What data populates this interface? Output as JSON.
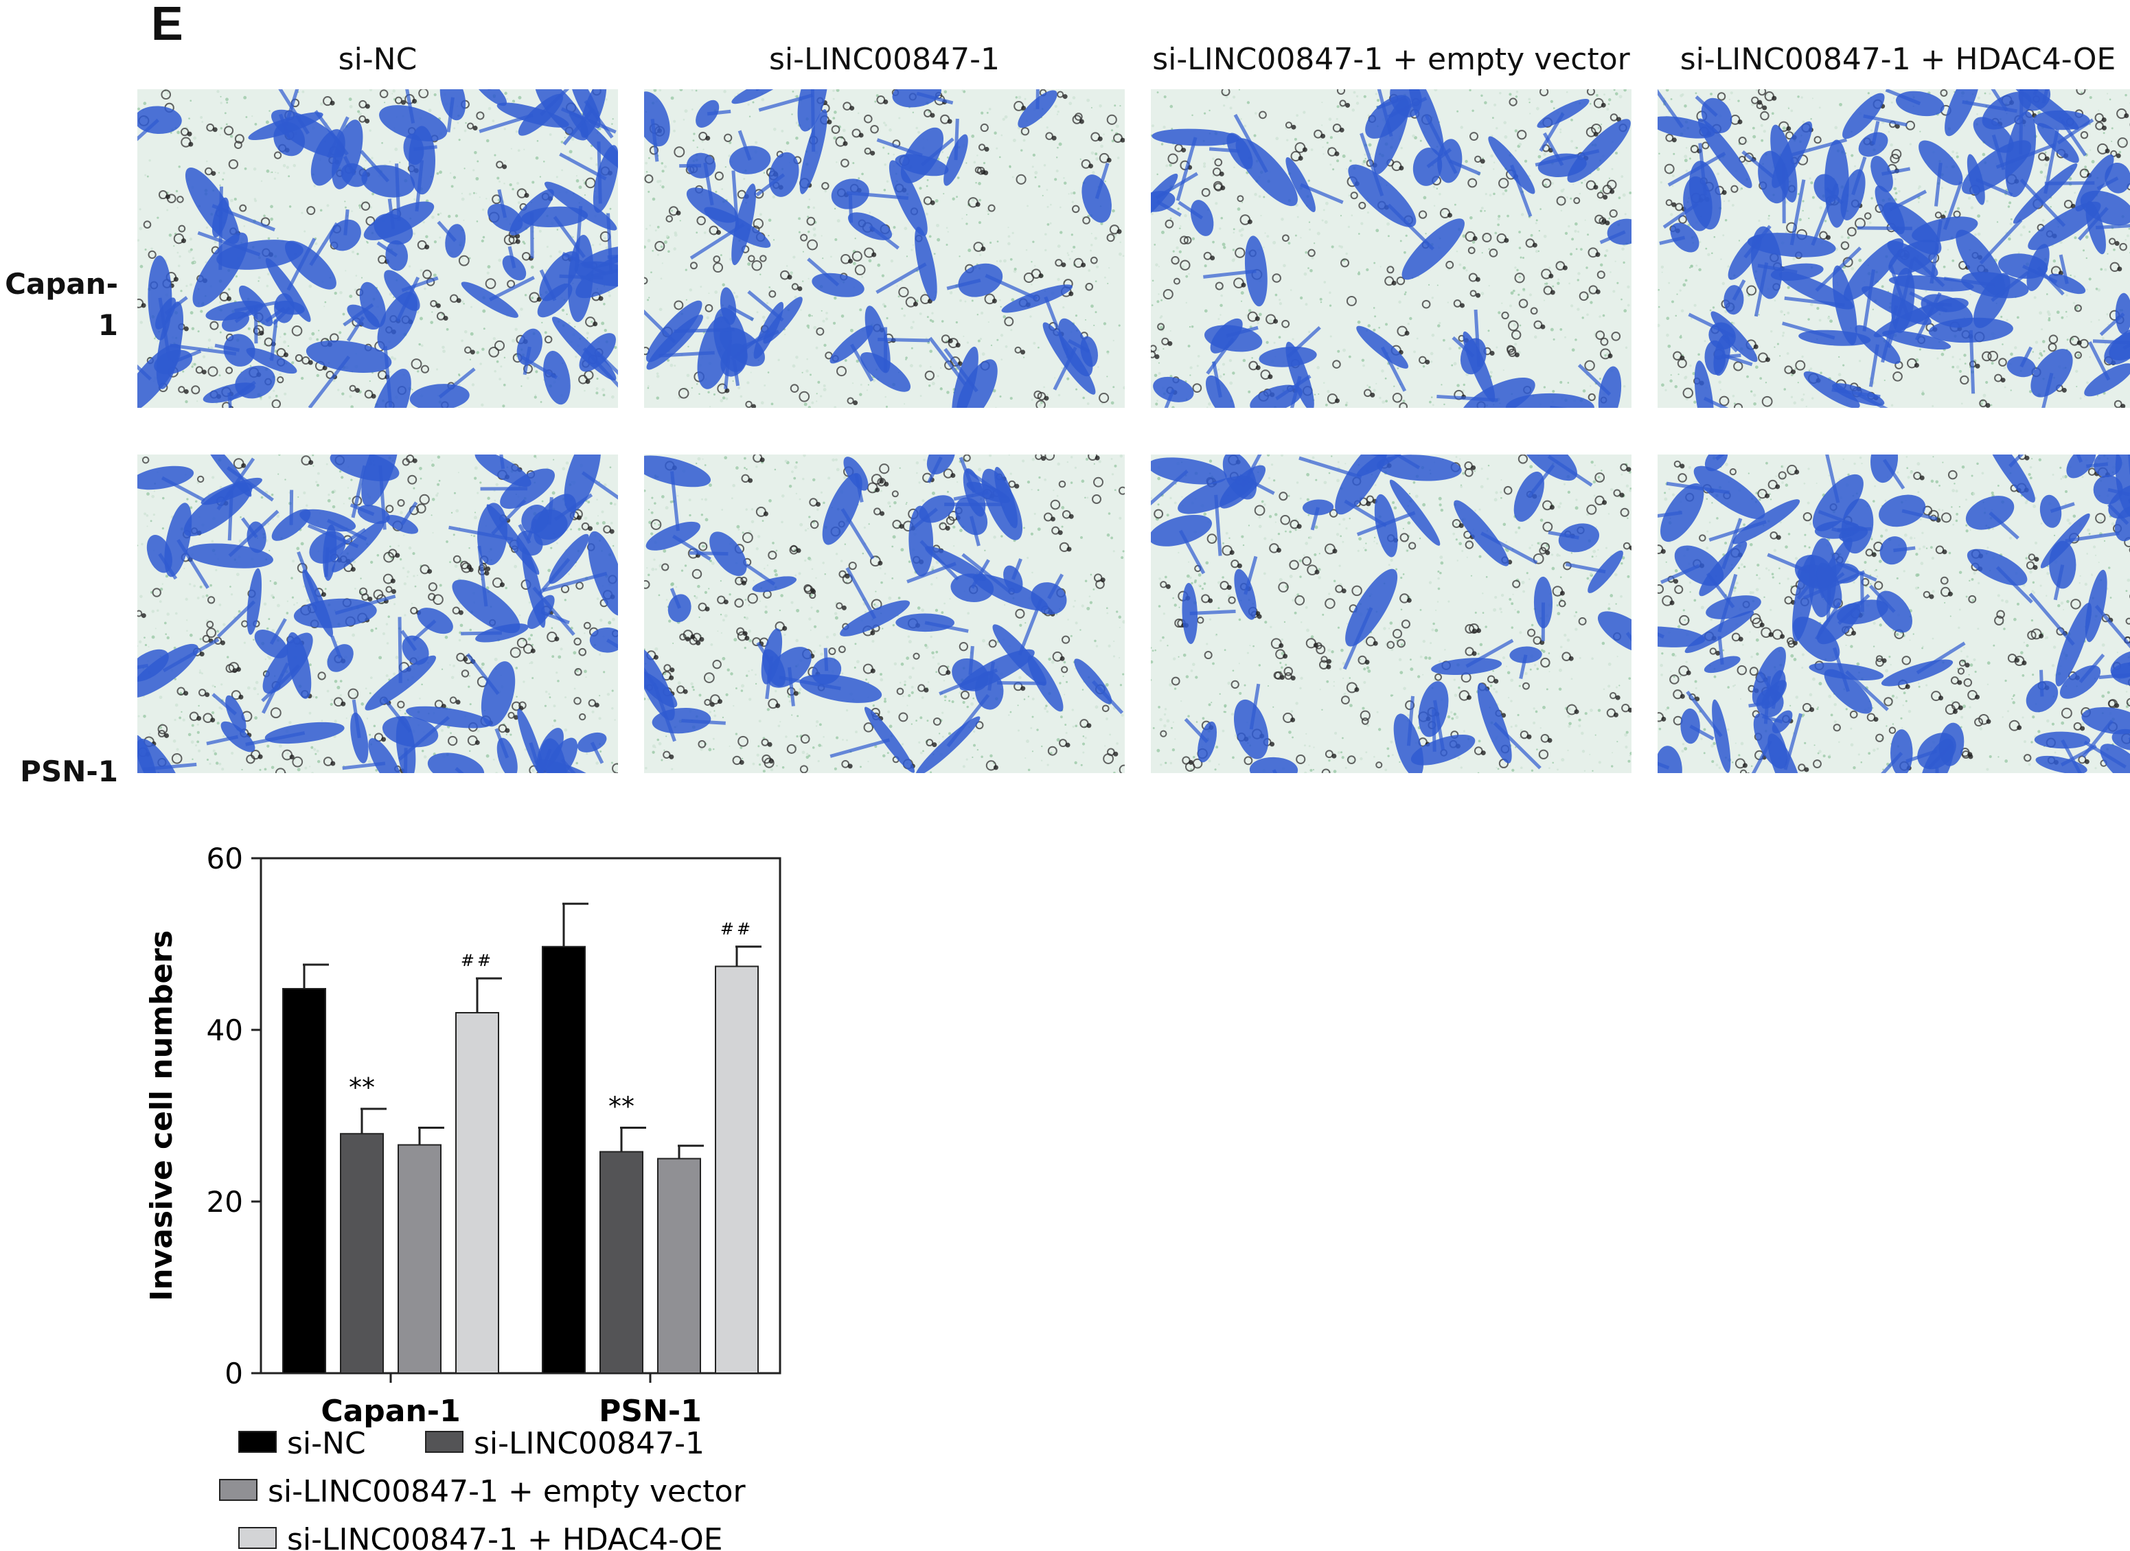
{
  "panel_label": "E",
  "micrographs": {
    "columns": [
      "si-NC",
      "si-LINC00847-1",
      "si-LINC00847-1 + empty vector",
      "si-LINC00847-1 + HDAC4-OE"
    ],
    "rows": [
      "Capan-1",
      "PSN-1"
    ],
    "cell_density": [
      [
        0.9,
        0.55,
        0.45,
        1.0
      ],
      [
        0.85,
        0.5,
        0.4,
        0.9
      ]
    ],
    "stain_color": "#2f5bd1",
    "background_color": "#e6f0ea"
  },
  "chart_data": {
    "type": "bar",
    "title": "",
    "xlabel": "",
    "ylabel": "Invasive cell numbers",
    "ylim": [
      0,
      60
    ],
    "yticks": [
      0,
      20,
      40,
      60
    ],
    "categories": [
      "Capan-1",
      "PSN-1"
    ],
    "legend_position": "bottom",
    "series": [
      {
        "name": "si-NC",
        "color": "#000000",
        "values": [
          44.8,
          49.7
        ],
        "errors": [
          2.8,
          5.0
        ],
        "annotations": [
          "",
          ""
        ]
      },
      {
        "name": "si-LINC00847-1",
        "color": "#545456",
        "values": [
          27.9,
          25.8
        ],
        "errors": [
          2.9,
          2.8
        ],
        "annotations": [
          "**",
          "**"
        ]
      },
      {
        "name": "si-LINC00847-1 + empty vector",
        "color": "#909094",
        "values": [
          26.6,
          25.0
        ],
        "errors": [
          2.0,
          1.5
        ],
        "annotations": [
          "",
          ""
        ]
      },
      {
        "name": "si-LINC00847-1 + HDAC4-OE",
        "color": "#d3d4d6",
        "values": [
          42.0,
          47.4
        ],
        "errors": [
          4.0,
          2.3
        ],
        "annotations": [
          "##",
          "##"
        ]
      }
    ]
  }
}
